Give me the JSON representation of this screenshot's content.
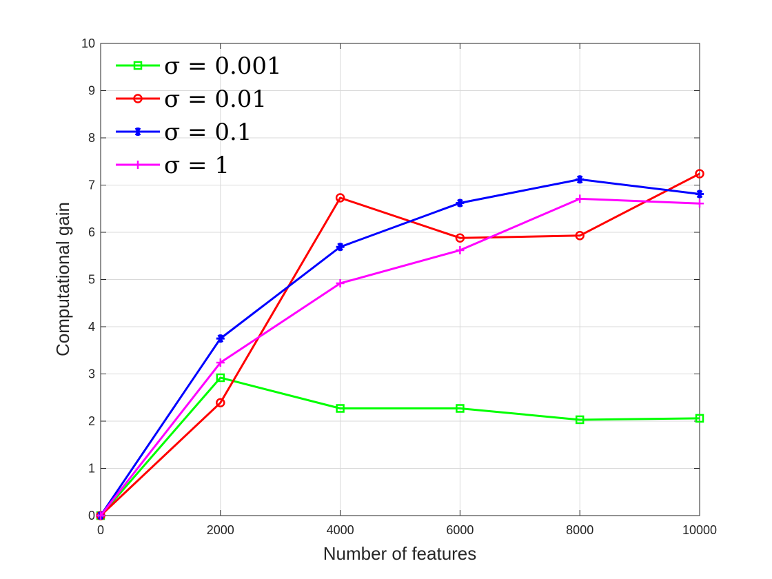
{
  "chart_data": {
    "type": "line",
    "xlabel": "Number of features",
    "ylabel": "Computational gain",
    "xlim": [
      0,
      10000
    ],
    "ylim": [
      0,
      10
    ],
    "xticks": [
      "0",
      "2000",
      "4000",
      "6000",
      "8000",
      "10000"
    ],
    "yticks": [
      "0",
      "1",
      "2",
      "3",
      "4",
      "5",
      "6",
      "7",
      "8",
      "9",
      "10"
    ],
    "grid": true,
    "legend_position": "top-left",
    "x": [
      0,
      2000,
      4000,
      6000,
      8000,
      10000
    ],
    "series": [
      {
        "name": "σ = 0.001",
        "color": "#00ff00",
        "marker": "square",
        "values": [
          0,
          2.92,
          2.27,
          2.27,
          2.03,
          2.06
        ]
      },
      {
        "name": "σ = 0.01",
        "color": "#ff0000",
        "marker": "circle",
        "values": [
          0,
          2.39,
          6.73,
          5.88,
          5.93,
          7.24
        ]
      },
      {
        "name": "σ = 0.1",
        "color": "#0000ff",
        "marker": "asterisk",
        "values": [
          0,
          3.75,
          5.69,
          6.62,
          7.12,
          6.81
        ]
      },
      {
        "name": "σ = 1",
        "color": "#ff00ff",
        "marker": "plus",
        "values": [
          0,
          3.24,
          4.92,
          5.62,
          6.71,
          6.61
        ]
      }
    ]
  }
}
